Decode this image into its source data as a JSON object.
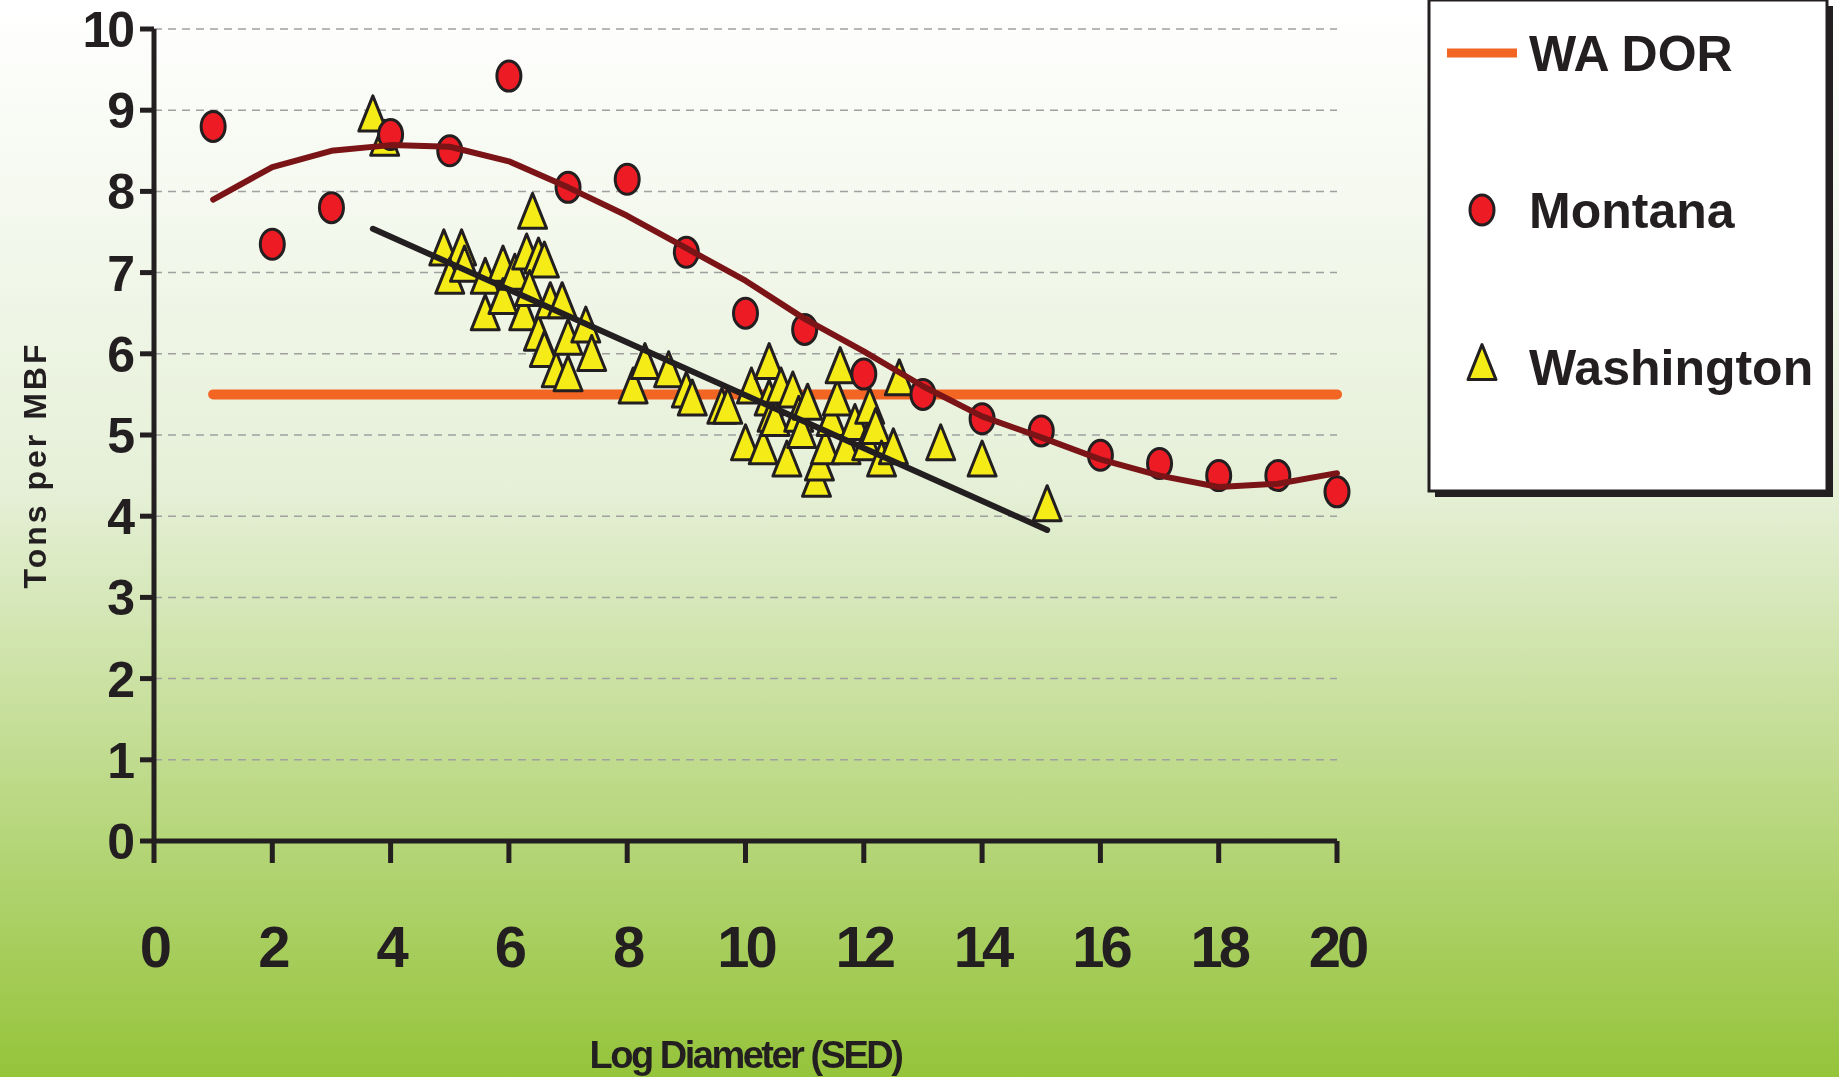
{
  "chart_data": {
    "type": "scatter",
    "xlabel": "Log Diameter (SED)",
    "ylabel": "Tons per MBF",
    "xlim": [
      0,
      20
    ],
    "xticks": [
      0,
      2,
      4,
      6,
      8,
      10,
      12,
      14,
      16,
      18,
      20
    ],
    "ylim": [
      0,
      10
    ],
    "yticks": [
      0,
      1,
      2,
      3,
      4,
      5,
      6,
      7,
      8,
      9,
      10
    ],
    "grid": "y",
    "legend": "top right",
    "series": [
      {
        "name": "WA DOR",
        "type": "line",
        "color": "#f26522",
        "marker": "none",
        "x": [
          1,
          20
        ],
        "values": [
          5.5,
          5.5
        ]
      },
      {
        "name": "Montana",
        "color": "#ed1c24",
        "marker": "circle",
        "x": [
          1,
          2,
          3,
          4,
          5,
          6,
          7,
          8,
          9,
          10,
          11,
          12,
          13,
          14,
          15,
          16,
          17,
          18,
          19,
          20
        ],
        "values": [
          8.8,
          7.35,
          7.8,
          8.7,
          8.5,
          9.42,
          8.05,
          8.15,
          7.25,
          6.5,
          6.3,
          5.75,
          5.5,
          5.2,
          5.05,
          4.75,
          4.65,
          4.5,
          4.5,
          4.3
        ]
      },
      {
        "name": "Washington",
        "color": "#f5ec17",
        "marker": "triangle",
        "x": [
          3.7,
          3.9,
          4.9,
          5.2,
          5.0,
          5.25,
          5.6,
          5.6,
          5.9,
          5.9,
          6.1,
          6.25,
          6.3,
          6.4,
          6.5,
          6.6,
          6.35,
          6.5,
          6.6,
          6.7,
          6.8,
          7.0,
          6.9,
          7.0,
          7.3,
          7.4,
          8.1,
          8.3,
          8.7,
          9.0,
          9.1,
          9.6,
          9.7,
          10.0,
          10.1,
          10.3,
          10.4,
          10.4,
          10.45,
          10.5,
          10.6,
          10.7,
          10.8,
          10.9,
          10.95,
          11.05,
          11.2,
          11.25,
          11.35,
          11.45,
          11.55,
          11.6,
          11.7,
          11.85,
          12.05,
          12.1,
          12.2,
          12.3,
          12.5,
          12.6,
          13.3,
          14.0,
          15.1
        ],
        "values": [
          8.9,
          8.6,
          7.25,
          7.25,
          6.9,
          7.05,
          6.9,
          6.45,
          7.05,
          6.65,
          6.95,
          6.45,
          7.2,
          7.7,
          7.15,
          7.1,
          6.75,
          6.2,
          6.0,
          6.6,
          5.75,
          5.7,
          6.6,
          6.15,
          6.3,
          5.95,
          5.55,
          5.85,
          5.75,
          5.5,
          5.4,
          5.3,
          5.3,
          4.85,
          5.55,
          4.8,
          5.85,
          5.4,
          5.2,
          5.15,
          5.55,
          4.65,
          5.5,
          5.2,
          5.0,
          5.35,
          4.4,
          4.6,
          4.8,
          5.15,
          5.4,
          5.8,
          4.8,
          5.1,
          4.85,
          5.3,
          5.05,
          4.65,
          4.8,
          5.65,
          4.85,
          4.65,
          4.1
        ]
      },
      {
        "type": "line",
        "color": "#7b1416",
        "marker": "none",
        "x": [
          1,
          2,
          3,
          4,
          5,
          6,
          7,
          8,
          9,
          10,
          11,
          12,
          13,
          14,
          15,
          16,
          17,
          18,
          19,
          20
        ],
        "values": [
          7.9,
          8.3,
          8.5,
          8.57,
          8.55,
          8.37,
          8.05,
          7.7,
          7.3,
          6.9,
          6.43,
          6.03,
          5.6,
          5.23,
          4.97,
          4.7,
          4.5,
          4.36,
          4.4,
          4.53
        ]
      },
      {
        "type": "line",
        "color": "#231f20",
        "marker": "none",
        "x": [
          3.7,
          15.1
        ],
        "values": [
          7.54,
          3.83
        ]
      }
    ]
  }
}
